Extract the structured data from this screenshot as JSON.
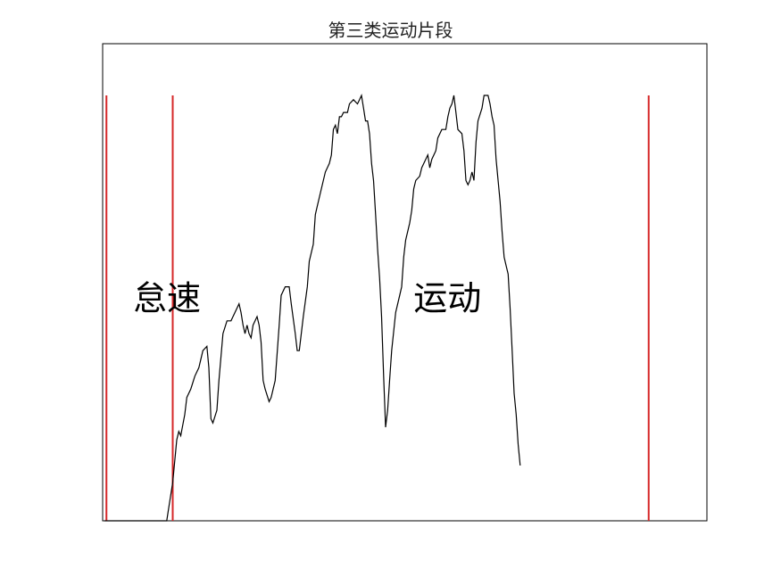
{
  "chart_data": {
    "type": "line",
    "title": "第三类运动片段",
    "xlabel": "",
    "ylabel": "",
    "axes_ticks": "none",
    "grid": false,
    "line_color": "#000000",
    "marker_color": "#d62728",
    "x_range": [
      0,
      300
    ],
    "y_range": [
      0,
      1.12
    ],
    "markers_x": [
      1,
      34,
      271
    ],
    "region_labels": [
      {
        "text": "怠速",
        "x": 32,
        "y": 0.55
      },
      {
        "text": "运动",
        "x": 169,
        "y": 0.55
      }
    ],
    "series": [
      {
        "points": [
          [
            0,
            0.0
          ],
          [
            31,
            0.0
          ],
          [
            32,
            0.03
          ],
          [
            34,
            0.09
          ],
          [
            36,
            0.19
          ],
          [
            37,
            0.21
          ],
          [
            38,
            0.2
          ],
          [
            40,
            0.25
          ],
          [
            41,
            0.29
          ],
          [
            43,
            0.31
          ],
          [
            45,
            0.34
          ],
          [
            47,
            0.36
          ],
          [
            49,
            0.4
          ],
          [
            51,
            0.41
          ],
          [
            52,
            0.36
          ],
          [
            53,
            0.24
          ],
          [
            54,
            0.23
          ],
          [
            56,
            0.26
          ],
          [
            57,
            0.33
          ],
          [
            59,
            0.44
          ],
          [
            61,
            0.47
          ],
          [
            63,
            0.47
          ],
          [
            65,
            0.49
          ],
          [
            67,
            0.51
          ],
          [
            68,
            0.49
          ],
          [
            69,
            0.46
          ],
          [
            70,
            0.44
          ],
          [
            71,
            0.46
          ],
          [
            72,
            0.44
          ],
          [
            73,
            0.43
          ],
          [
            74,
            0.46
          ],
          [
            76,
            0.48
          ],
          [
            77,
            0.46
          ],
          [
            78,
            0.42
          ],
          [
            79,
            0.33
          ],
          [
            80,
            0.31
          ],
          [
            82,
            0.28
          ],
          [
            83,
            0.29
          ],
          [
            85,
            0.33
          ],
          [
            87,
            0.46
          ],
          [
            88,
            0.53
          ],
          [
            90,
            0.55
          ],
          [
            92,
            0.55
          ],
          [
            93,
            0.51
          ],
          [
            95,
            0.44
          ],
          [
            96,
            0.4
          ],
          [
            97,
            0.4
          ],
          [
            99,
            0.48
          ],
          [
            101,
            0.55
          ],
          [
            102,
            0.61
          ],
          [
            104,
            0.65
          ],
          [
            105,
            0.72
          ],
          [
            106,
            0.74
          ],
          [
            108,
            0.78
          ],
          [
            110,
            0.82
          ],
          [
            112,
            0.84
          ],
          [
            113,
            0.86
          ],
          [
            114,
            0.92
          ],
          [
            115,
            0.93
          ],
          [
            116,
            0.91
          ],
          [
            117,
            0.95
          ],
          [
            118,
            0.95
          ],
          [
            119,
            0.96
          ],
          [
            121,
            0.96
          ],
          [
            122,
            0.98
          ],
          [
            124,
            0.99
          ],
          [
            126,
            0.98
          ],
          [
            127,
            0.99
          ],
          [
            128,
            1.0
          ],
          [
            129,
            0.97
          ],
          [
            130,
            0.94
          ],
          [
            131,
            0.94
          ],
          [
            132,
            0.91
          ],
          [
            133,
            0.84
          ],
          [
            134,
            0.8
          ],
          [
            135,
            0.72
          ],
          [
            136,
            0.64
          ],
          [
            137,
            0.57
          ],
          [
            138,
            0.48
          ],
          [
            139,
            0.34
          ],
          [
            140,
            0.22
          ],
          [
            141,
            0.26
          ],
          [
            142,
            0.33
          ],
          [
            143,
            0.4
          ],
          [
            145,
            0.49
          ],
          [
            147,
            0.53
          ],
          [
            148,
            0.55
          ],
          [
            149,
            0.62
          ],
          [
            150,
            0.66
          ],
          [
            152,
            0.7
          ],
          [
            153,
            0.73
          ],
          [
            154,
            0.78
          ],
          [
            155,
            0.8
          ],
          [
            157,
            0.81
          ],
          [
            158,
            0.83
          ],
          [
            159,
            0.84
          ],
          [
            161,
            0.86
          ],
          [
            162,
            0.83
          ],
          [
            163,
            0.85
          ],
          [
            165,
            0.87
          ],
          [
            166,
            0.9
          ],
          [
            168,
            0.92
          ],
          [
            170,
            0.92
          ],
          [
            171,
            0.95
          ],
          [
            172,
            0.97
          ],
          [
            173,
            0.98
          ],
          [
            174,
            1.0
          ],
          [
            175,
            0.96
          ],
          [
            176,
            0.92
          ],
          [
            178,
            0.91
          ],
          [
            179,
            0.87
          ],
          [
            180,
            0.8
          ],
          [
            181,
            0.79
          ],
          [
            182,
            0.8
          ],
          [
            183,
            0.82
          ],
          [
            184,
            0.8
          ],
          [
            185,
            0.89
          ],
          [
            186,
            0.94
          ],
          [
            188,
            0.97
          ],
          [
            189,
            1.0
          ],
          [
            191,
            1.0
          ],
          [
            192,
            0.98
          ],
          [
            193,
            0.95
          ],
          [
            194,
            0.93
          ],
          [
            195,
            0.85
          ],
          [
            197,
            0.75
          ],
          [
            198,
            0.68
          ],
          [
            199,
            0.62
          ],
          [
            200,
            0.6
          ],
          [
            201,
            0.58
          ],
          [
            202,
            0.5
          ],
          [
            203,
            0.4
          ],
          [
            204,
            0.3
          ],
          [
            205,
            0.25
          ],
          [
            206,
            0.18
          ],
          [
            207,
            0.13
          ]
        ]
      }
    ]
  }
}
